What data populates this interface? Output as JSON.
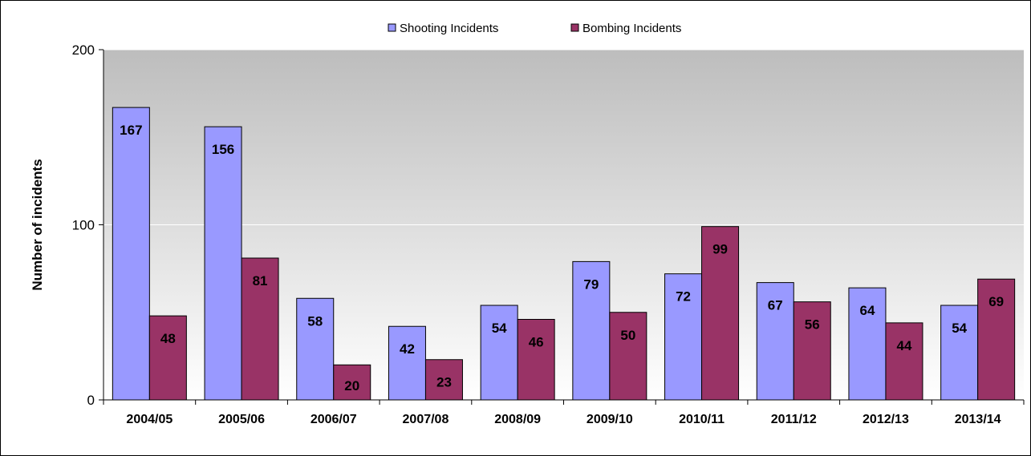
{
  "chart_data": {
    "type": "bar",
    "title": "",
    "xlabel": "",
    "ylabel": "Number of incidents",
    "ylim": [
      0,
      200
    ],
    "yticks": [
      0,
      100,
      200
    ],
    "legend_position": "top-center",
    "grid": true,
    "categories": [
      "2004/05",
      "2005/06",
      "2006/07",
      "2007/08",
      "2008/09",
      "2009/10",
      "2010/11",
      "2011/12",
      "2012/13",
      "2013/14"
    ],
    "series": [
      {
        "name": "Shooting Incidents",
        "color": "#9999ff",
        "values": [
          167,
          156,
          58,
          42,
          54,
          79,
          72,
          67,
          64,
          54
        ]
      },
      {
        "name": "Bombing Incidents",
        "color": "#993366",
        "values": [
          48,
          81,
          20,
          23,
          46,
          50,
          99,
          56,
          44,
          69
        ]
      }
    ]
  }
}
